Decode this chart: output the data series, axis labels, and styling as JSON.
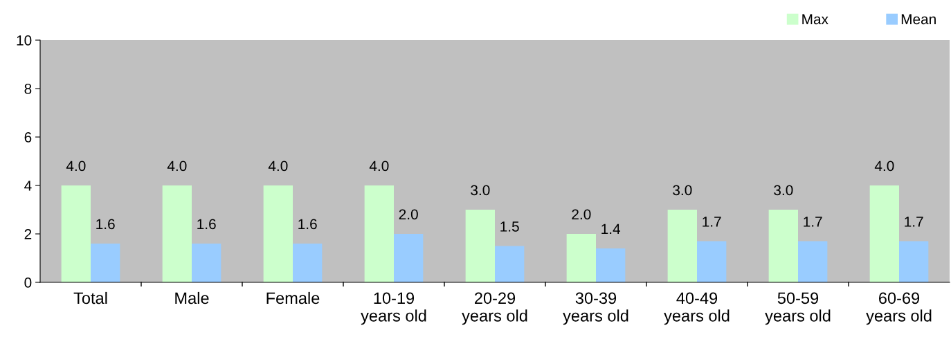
{
  "chart_data": {
    "type": "bar",
    "categories": [
      "Total",
      "Male",
      "Female",
      "10-19\nyears old",
      "20-29\nyears old",
      "30-39\nyears old",
      "40-49\nyears old",
      "50-59\nyears old",
      "60-69\nyears old"
    ],
    "series": [
      {
        "name": "Max",
        "color": "#ccffcc",
        "values": [
          4.0,
          4.0,
          4.0,
          4.0,
          3.0,
          2.0,
          3.0,
          3.0,
          4.0
        ],
        "value_labels": [
          "4.0",
          "4.0",
          "4.0",
          "4.0",
          "3.0",
          "2.0",
          "3.0",
          "3.0",
          "4.0"
        ]
      },
      {
        "name": "Mean",
        "color": "#99ccff",
        "values": [
          1.6,
          1.6,
          1.6,
          2.0,
          1.5,
          1.4,
          1.7,
          1.7,
          1.7
        ],
        "value_labels": [
          "1.6",
          "1.6",
          "1.6",
          "2.0",
          "1.5",
          "1.4",
          "1.7",
          "1.7",
          "1.7"
        ]
      }
    ],
    "ylim": [
      0,
      10
    ],
    "yticks": [
      0,
      2,
      4,
      6,
      8,
      10
    ],
    "grid": false,
    "legend": "top right"
  }
}
